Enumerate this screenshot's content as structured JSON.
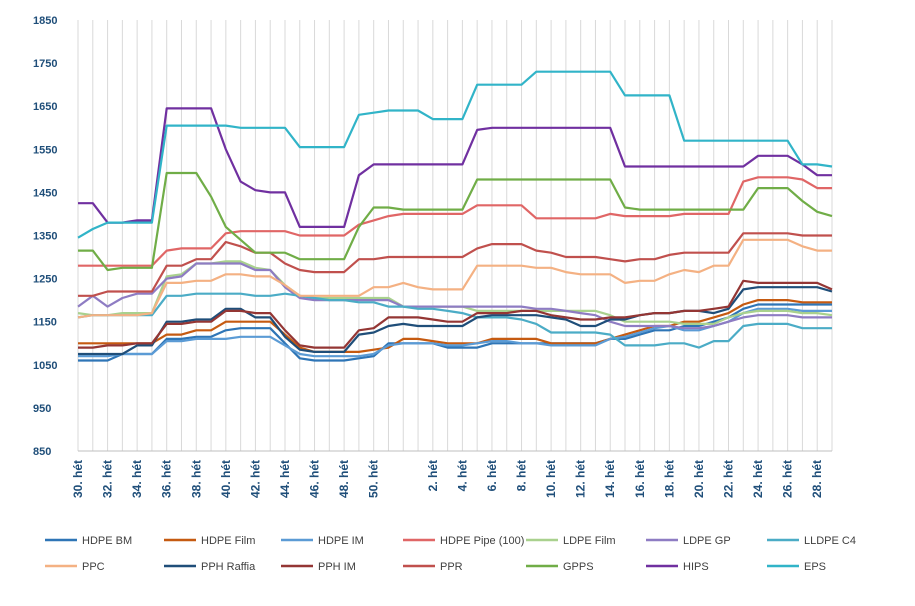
{
  "chart_data": {
    "type": "line",
    "ylim": [
      850,
      1850
    ],
    "yticks": [
      850,
      950,
      1050,
      1150,
      1250,
      1350,
      1450,
      1550,
      1650,
      1750,
      1850
    ],
    "x": [
      "30. hét",
      "31. hét",
      "32. hét",
      "33. hét",
      "34. hét",
      "35. hét",
      "36. hét",
      "37. hét",
      "38. hét",
      "39. hét",
      "40. hét",
      "41. hét",
      "42. hét",
      "43. hét",
      "44. hét",
      "45. hét",
      "46. hét",
      "47. hét",
      "48. hét",
      "49. hét",
      "50. hét",
      "51. hét",
      "52. hét",
      "1. hét",
      "2. hét",
      "3. hét",
      "4. hét",
      "5. hét",
      "6. hét",
      "7. hét",
      "8. hét",
      "9. hét",
      "10. hét",
      "11. hét",
      "12. hét",
      "13. hét",
      "14. hét",
      "15. hét",
      "16. hét",
      "17. hét",
      "18. hét",
      "19. hét",
      "20. hét",
      "21. hét",
      "22. hét",
      "23. hét",
      "24. hét",
      "25. hét",
      "26. hét",
      "27. hét",
      "28. hét",
      "29. hét"
    ],
    "x_labels_shown": [
      "30. hét",
      "32. hét",
      "34. hét",
      "36. hét",
      "38. hét",
      "40. hét",
      "42. hét",
      "44. hét",
      "46. hét",
      "48. hét",
      "50. hét",
      "2. hét",
      "4. hét",
      "6. hét",
      "8. hét",
      "10. hét",
      "12. hét",
      "14. hét",
      "16. hét",
      "18. hét",
      "20. hét",
      "22. hét",
      "24. hét",
      "26. hét",
      "28. hét"
    ],
    "grid": "vertical",
    "legend_position": "bottom",
    "series": [
      {
        "name": "HDPE BM",
        "color": "#2e75b6",
        "values": [
          1060,
          1060,
          1060,
          1075,
          1075,
          1075,
          1110,
          1110,
          1115,
          1115,
          1130,
          1135,
          1135,
          1135,
          1100,
          1065,
          1060,
          1060,
          1060,
          1065,
          1070,
          1100,
          1100,
          1100,
          1100,
          1090,
          1090,
          1090,
          1100,
          1100,
          1100,
          1100,
          1100,
          1100,
          1100,
          1100,
          1110,
          1110,
          1120,
          1130,
          1130,
          1140,
          1140,
          1150,
          1160,
          1180,
          1190,
          1190,
          1190,
          1190,
          1190,
          1190
        ]
      },
      {
        "name": "HDPE Film",
        "color": "#c55a11",
        "values": [
          1100,
          1100,
          1100,
          1100,
          1100,
          1100,
          1120,
          1120,
          1130,
          1130,
          1150,
          1150,
          1150,
          1150,
          1120,
          1090,
          1080,
          1080,
          1080,
          1080,
          1085,
          1090,
          1110,
          1110,
          1105,
          1100,
          1100,
          1100,
          1110,
          1110,
          1110,
          1110,
          1100,
          1100,
          1100,
          1100,
          1110,
          1120,
          1130,
          1140,
          1140,
          1150,
          1150,
          1160,
          1170,
          1190,
          1200,
          1200,
          1200,
          1195,
          1195,
          1195
        ]
      },
      {
        "name": "HDPE IM",
        "color": "#5b9bd5",
        "values": [
          1070,
          1070,
          1070,
          1075,
          1075,
          1075,
          1105,
          1105,
          1110,
          1110,
          1110,
          1115,
          1115,
          1115,
          1095,
          1075,
          1070,
          1070,
          1070,
          1070,
          1075,
          1095,
          1100,
          1100,
          1100,
          1095,
          1095,
          1100,
          1105,
          1105,
          1100,
          1100,
          1095,
          1095,
          1095,
          1095,
          1110,
          1115,
          1125,
          1135,
          1140,
          1130,
          1130,
          1140,
          1150,
          1170,
          1180,
          1180,
          1180,
          1175,
          1175,
          1175
        ]
      },
      {
        "name": "HDPE Pipe (100)",
        "color": "#e06666",
        "values": [
          1280,
          1280,
          1280,
          1280,
          1280,
          1280,
          1315,
          1320,
          1320,
          1320,
          1355,
          1360,
          1360,
          1360,
          1360,
          1350,
          1350,
          1350,
          1350,
          1375,
          1385,
          1395,
          1400,
          1400,
          1400,
          1400,
          1400,
          1420,
          1420,
          1420,
          1420,
          1390,
          1390,
          1390,
          1390,
          1390,
          1400,
          1395,
          1395,
          1395,
          1395,
          1400,
          1400,
          1400,
          1400,
          1475,
          1485,
          1485,
          1485,
          1480,
          1460,
          1460
        ]
      },
      {
        "name": "LDPE Film",
        "color": "#a9d18e",
        "values": [
          1170,
          1165,
          1165,
          1170,
          1170,
          1170,
          1255,
          1260,
          1285,
          1285,
          1290,
          1290,
          1275,
          1270,
          1235,
          1210,
          1205,
          1205,
          1205,
          1205,
          1205,
          1205,
          1185,
          1185,
          1185,
          1185,
          1185,
          1175,
          1175,
          1175,
          1175,
          1175,
          1175,
          1175,
          1175,
          1175,
          1165,
          1150,
          1150,
          1150,
          1150,
          1145,
          1145,
          1145,
          1160,
          1170,
          1175,
          1175,
          1175,
          1170,
          1170,
          1165
        ]
      },
      {
        "name": "LDPE GP",
        "color": "#8e7cc3",
        "values": [
          1185,
          1210,
          1185,
          1205,
          1215,
          1215,
          1250,
          1255,
          1285,
          1285,
          1285,
          1285,
          1270,
          1270,
          1230,
          1205,
          1200,
          1200,
          1200,
          1200,
          1200,
          1200,
          1185,
          1185,
          1185,
          1185,
          1185,
          1185,
          1185,
          1185,
          1185,
          1180,
          1180,
          1175,
          1170,
          1165,
          1150,
          1140,
          1140,
          1140,
          1140,
          1135,
          1135,
          1140,
          1150,
          1160,
          1165,
          1165,
          1165,
          1160,
          1160,
          1160
        ]
      },
      {
        "name": "LLDPE C4",
        "color": "#4bacc6",
        "values": [
          1160,
          1165,
          1165,
          1165,
          1165,
          1165,
          1210,
          1210,
          1215,
          1215,
          1215,
          1215,
          1210,
          1210,
          1215,
          1210,
          1205,
          1200,
          1200,
          1195,
          1195,
          1185,
          1185,
          1180,
          1180,
          1175,
          1170,
          1160,
          1160,
          1160,
          1155,
          1145,
          1125,
          1125,
          1125,
          1125,
          1120,
          1095,
          1095,
          1095,
          1100,
          1100,
          1090,
          1105,
          1105,
          1140,
          1145,
          1145,
          1145,
          1135,
          1135,
          1135
        ]
      },
      {
        "name": "PPC",
        "color": "#f4b183",
        "values": [
          1160,
          1165,
          1165,
          1165,
          1165,
          1170,
          1240,
          1240,
          1245,
          1245,
          1260,
          1260,
          1255,
          1255,
          1235,
          1210,
          1210,
          1210,
          1210,
          1210,
          1230,
          1230,
          1240,
          1230,
          1225,
          1225,
          1225,
          1280,
          1280,
          1280,
          1280,
          1275,
          1275,
          1265,
          1260,
          1260,
          1260,
          1240,
          1245,
          1245,
          1260,
          1270,
          1265,
          1280,
          1280,
          1340,
          1340,
          1340,
          1340,
          1325,
          1315,
          1315
        ]
      },
      {
        "name": "PPH Raffia",
        "color": "#1f4e79",
        "values": [
          1075,
          1075,
          1075,
          1075,
          1095,
          1095,
          1150,
          1150,
          1155,
          1155,
          1180,
          1180,
          1160,
          1160,
          1115,
          1085,
          1080,
          1080,
          1080,
          1120,
          1125,
          1140,
          1145,
          1140,
          1140,
          1140,
          1140,
          1160,
          1165,
          1165,
          1165,
          1165,
          1160,
          1155,
          1140,
          1140,
          1155,
          1155,
          1165,
          1170,
          1170,
          1175,
          1175,
          1170,
          1180,
          1225,
          1230,
          1230,
          1230,
          1230,
          1230,
          1220
        ]
      },
      {
        "name": "PPH IM",
        "color": "#943634",
        "values": [
          1090,
          1090,
          1095,
          1095,
          1100,
          1100,
          1145,
          1145,
          1150,
          1150,
          1175,
          1175,
          1170,
          1170,
          1130,
          1095,
          1090,
          1090,
          1090,
          1130,
          1135,
          1160,
          1160,
          1160,
          1155,
          1150,
          1150,
          1170,
          1170,
          1170,
          1175,
          1175,
          1165,
          1160,
          1155,
          1155,
          1160,
          1160,
          1165,
          1170,
          1170,
          1175,
          1175,
          1180,
          1185,
          1245,
          1240,
          1240,
          1240,
          1240,
          1240,
          1225
        ]
      },
      {
        "name": "PPR",
        "color": "#c0504d",
        "values": [
          1210,
          1210,
          1220,
          1220,
          1220,
          1220,
          1280,
          1280,
          1295,
          1295,
          1335,
          1325,
          1310,
          1310,
          1285,
          1270,
          1265,
          1265,
          1265,
          1295,
          1295,
          1300,
          1300,
          1300,
          1300,
          1300,
          1300,
          1320,
          1330,
          1330,
          1330,
          1315,
          1310,
          1300,
          1300,
          1300,
          1295,
          1290,
          1295,
          1295,
          1305,
          1310,
          1310,
          1310,
          1310,
          1355,
          1355,
          1355,
          1355,
          1350,
          1350,
          1350
        ]
      },
      {
        "name": "GPPS",
        "color": "#70ad47",
        "values": [
          1315,
          1315,
          1270,
          1275,
          1275,
          1275,
          1495,
          1495,
          1495,
          1440,
          1370,
          1340,
          1310,
          1310,
          1310,
          1295,
          1295,
          1295,
          1295,
          1370,
          1415,
          1415,
          1410,
          1410,
          1410,
          1410,
          1410,
          1480,
          1480,
          1480,
          1480,
          1480,
          1480,
          1480,
          1480,
          1480,
          1480,
          1415,
          1410,
          1410,
          1410,
          1410,
          1410,
          1410,
          1410,
          1410,
          1460,
          1460,
          1460,
          1430,
          1405,
          1395
        ]
      },
      {
        "name": "HIPS",
        "color": "#7030a0",
        "values": [
          1425,
          1425,
          1380,
          1380,
          1385,
          1385,
          1645,
          1645,
          1645,
          1645,
          1550,
          1475,
          1455,
          1450,
          1450,
          1370,
          1370,
          1370,
          1370,
          1490,
          1515,
          1515,
          1515,
          1515,
          1515,
          1515,
          1515,
          1595,
          1600,
          1600,
          1600,
          1600,
          1600,
          1600,
          1600,
          1600,
          1600,
          1510,
          1510,
          1510,
          1510,
          1510,
          1510,
          1510,
          1510,
          1510,
          1535,
          1535,
          1535,
          1515,
          1490,
          1490
        ]
      },
      {
        "name": "EPS",
        "color": "#31b4c8",
        "values": [
          1345,
          1365,
          1380,
          1380,
          1380,
          1380,
          1605,
          1605,
          1605,
          1605,
          1605,
          1600,
          1600,
          1600,
          1600,
          1555,
          1555,
          1555,
          1555,
          1630,
          1635,
          1640,
          1640,
          1640,
          1620,
          1620,
          1620,
          1700,
          1700,
          1700,
          1700,
          1730,
          1730,
          1730,
          1730,
          1730,
          1730,
          1675,
          1675,
          1675,
          1675,
          1570,
          1570,
          1570,
          1570,
          1570,
          1570,
          1570,
          1570,
          1515,
          1515,
          1510
        ]
      }
    ]
  }
}
